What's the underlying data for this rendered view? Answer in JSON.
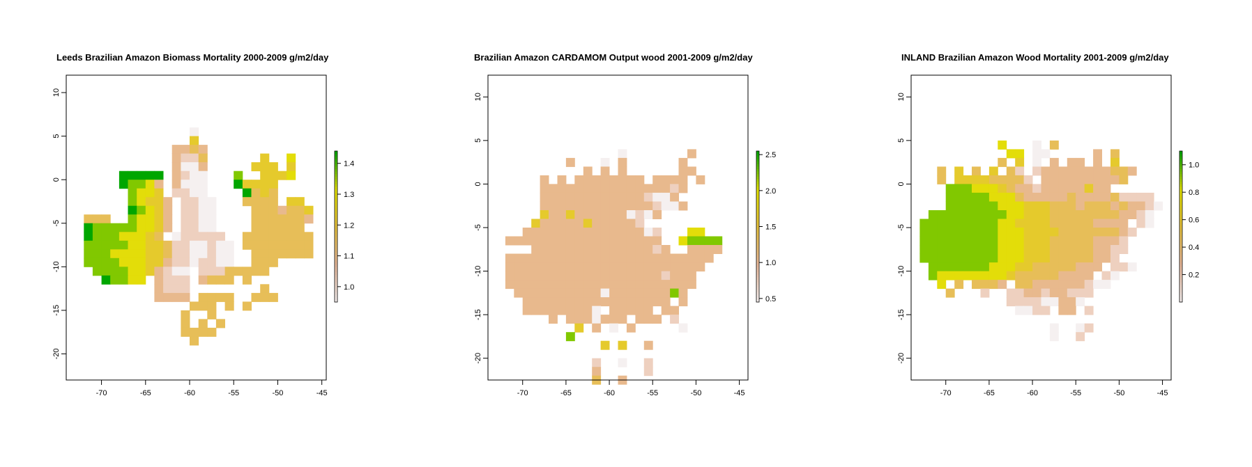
{
  "chart_data": [
    {
      "type": "heatmap",
      "title": "Leeds Brazilian Amazon Biomass Mortality 2000-2009 g/m2/day",
      "x_ticks": [
        -70,
        -65,
        -60,
        -55,
        -50,
        -45
      ],
      "y_ticks": [
        10,
        5,
        0,
        -5,
        -10,
        -15,
        -20
      ],
      "xlim": [
        -74,
        -44.5
      ],
      "ylim": [
        -23,
        12
      ],
      "colorbar": {
        "ticks": [
          1.0,
          1.1,
          1.2,
          1.3,
          1.4
        ],
        "range": [
          0.95,
          1.44
        ]
      },
      "colors": {
        "low": "#f5f0f0",
        "mid_low": "#e8b89a",
        "mid": "#e6c13e",
        "high_mid": "#e2e200",
        "high": "#00a600"
      },
      "grid": {
        "x0": -74,
        "dx": 1,
        "y0": 6,
        "dy": -1
      },
      "rows": [
        "..............0.............",
        "..............4.............",
        "............2232...........",
        "............2113......4..5..",
        "............2002.....444.4..",
        "......77777.2100...6..4445..",
        "......76652.2000...74444....",
        ".......6554.1100....7343....",
        ".......65442.1100...3333.44.",
        ".......76542.1100....3332334",
        "..333..65542.1100....3333332",
        "..7666665542.1100....333333.",
        "..766655543.011111..33333333",
        "..66666554431100100.33333333",
        "..66655554431100100..3333333",
        "..66665554421101100..333....",
        "...66665542100.11133333.....",
        "....76655.2111.2333.3.......",
        "..........2111........3.....",
        "..........2222.3333..333....",
        "..............333.3.3.......",
        ".............3..3...........",
        ".............3.3.3..........",
        ".............3333...........",
        "..............3............."
      ]
    },
    {
      "type": "heatmap",
      "title": "Brazilian Amazon CARDAMOM Output wood  2001-2009 g/m2/day",
      "x_ticks": [
        -70,
        -65,
        -60,
        -55,
        -50,
        -45
      ],
      "y_ticks": [
        10,
        5,
        0,
        -5,
        -10,
        -15,
        -20
      ],
      "xlim": [
        -74,
        -44
      ],
      "ylim": [
        -22.5,
        12.5
      ],
      "colorbar": {
        "ticks": [
          0.5,
          1.0,
          1.5,
          2.0,
          2.5
        ],
        "range": [
          0.45,
          2.55
        ]
      },
      "colors": {
        "low": "#f5f0f0",
        "mid_low": "#e8b89a",
        "mid": "#e6c13e",
        "high_mid": "#e2e200",
        "high": "#00a600"
      },
      "grid": {
        "x0": -74,
        "dx": 1,
        "y0": 4,
        "dy": -1
      },
      "rows": [
        "...............0.......2.....",
        ".........2...0.2......2......",
        "...........2.2.2......22.....",
        "......2.2.22222222.2222.2...",
        "......22222222222222212......",
        "......2222222222221002......",
        "......22222222222221002......",
        "......42242222220102..........",
        ".....4222224222221.............",
        "....2222222222222201...55.....",
        "..222222222222222222..56666..",
        ".....2222222222222212..2222...",
        "..222222222222222222222222.....",
        "..22222222222222222222222......",
        "..2222222222222222221222.......",
        "..2222222222222222222222.......",
        "...22222222220222222262........",
        "....22222222222222222.2........",
        "....222222220.22222.22.........",
        ".......2.2220222.222.1.........",
        "..........4.2.0.2.....0........",
        ".........6.....................",
        ".............4.4..2............",
        "...............................",
        "............1..0..1............",
        "............2.....1............",
        "............3..2..............."
      ]
    },
    {
      "type": "heatmap",
      "title": "INLAND Brazilian Amazon Wood Mortality 2001-2009 g/m2/day",
      "x_ticks": [
        -70,
        -65,
        -60,
        -55,
        -50,
        -45
      ],
      "y_ticks": [
        10,
        5,
        0,
        -5,
        -10,
        -15,
        -20
      ],
      "xlim": [
        -74,
        -44
      ],
      "ylim": [
        -22.5,
        12.5
      ],
      "colorbar": {
        "ticks": [
          0.2,
          0.4,
          0.6,
          0.8,
          1.0
        ],
        "range": [
          0.0,
          1.1
        ]
      },
      "colors": {
        "low": "#f5f0f0",
        "mid_low": "#e8b89a",
        "mid": "#e6c13e",
        "high_mid": "#e2e200",
        "high": "#00a600"
      },
      "grid": {
        "x0": -74,
        "dx": 1,
        "y0": 5,
        "dy": -1
      },
      "rows": [
        "..........5...0.3............",
        "...........55.00.....2.3.....",
        "..........3.4.0.2.22.2.4.....",
        "...3.4.3.4.31.122222222332...",
        "...3.444433331.2222222223.....",
        "....6665554322122222422.......",
        "....666665553222223222231111.",
        "....6666665554443332333232210.",
        "..66666666655444333333332210..",
        ".666666666554444333332222.10..",
        ".6666666665554444333333321....",
        ".666666666555444333332221.....",
        ".666666666555444333332211.....",
        ".66666666655544433333221......",
        "..66666665554433333222.110....",
        "..6555555554333332222.10......",
        "...5.3.3332.33222222100........",
        "....3...1..1122122111.........",
        "...........111100220..........",
        "............0011.22.1.........",
        "...............................",
        "................0..01..........",
        "................0..1..........."
      ]
    }
  ]
}
